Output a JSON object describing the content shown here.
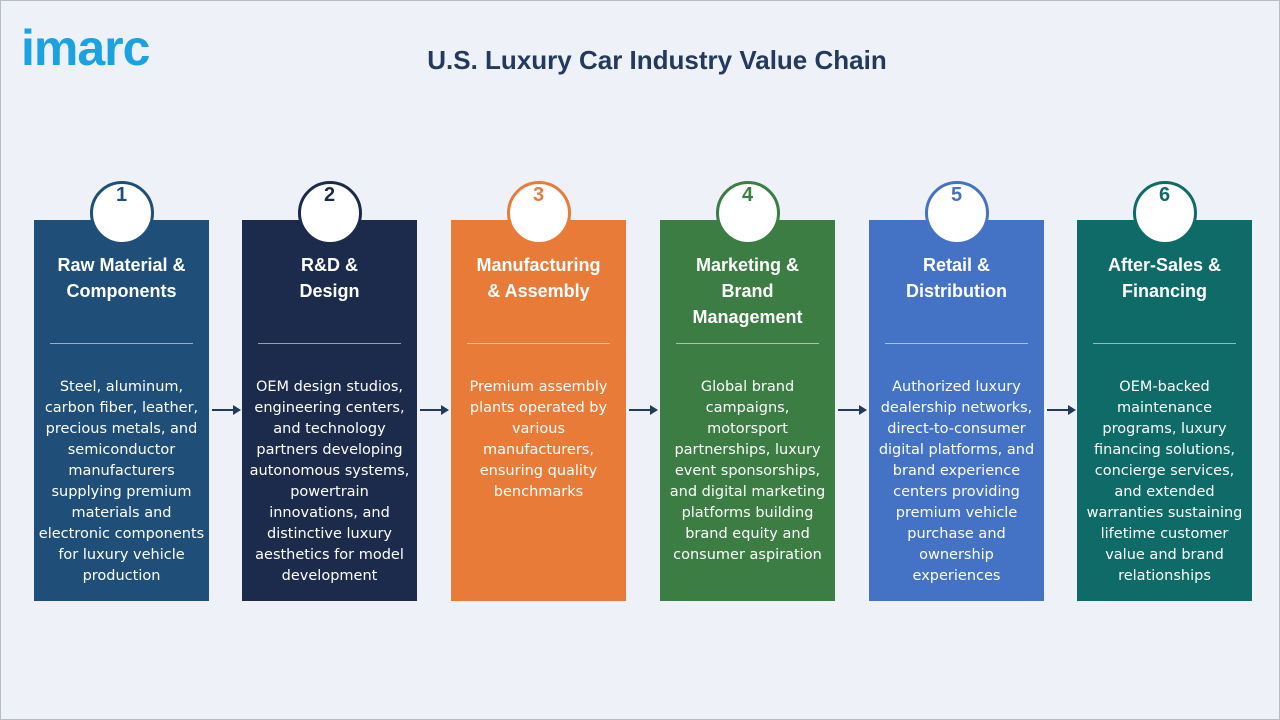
{
  "header": {
    "logo": "imarc",
    "title": "U.S. Luxury Car Industry Value Chain"
  },
  "steps": [
    {
      "number": 1,
      "color": "#1f4e79",
      "title": [
        "Raw Material &",
        "Components"
      ],
      "description": "Steel, aluminum, carbon fiber, leather, precious metals, and semiconductor manufacturers supplying premium materials and electronic components for luxury vehicle production"
    },
    {
      "number": 2,
      "color": "#1c2b4b",
      "title": [
        "R&D &",
        "Design"
      ],
      "description": "OEM design studios, engineering centers, and technology partners developing autonomous systems, powertrain innovations, and distinctive luxury aesthetics for model development"
    },
    {
      "number": 3,
      "color": "#e97b39",
      "title": [
        "Manufacturing",
        "& Assembly"
      ],
      "description": "Premium assembly plants operated by various manufacturers, ensuring quality benchmarks"
    },
    {
      "number": 4,
      "color": "#3b7d43",
      "title": [
        "Marketing &",
        "Brand",
        "Management"
      ],
      "description": "Global brand campaigns, motorsport partnerships, luxury event sponsorships, and digital marketing platforms building brand equity and consumer aspiration"
    },
    {
      "number": 5,
      "color": "#4472c4",
      "title": [
        "Retail &",
        "Distribution"
      ],
      "description": "Authorized luxury dealership networks, direct-to-consumer digital platforms, and brand experience centers providing premium vehicle purchase and ownership experiences"
    },
    {
      "number": 6,
      "color": "#0e6b68",
      "title": [
        "After-Sales &",
        "Financing"
      ],
      "description": "OEM-backed maintenance programs, luxury financing solutions, concierge services, and extended warranties sustaining lifetime customer value and brand relationships"
    }
  ]
}
